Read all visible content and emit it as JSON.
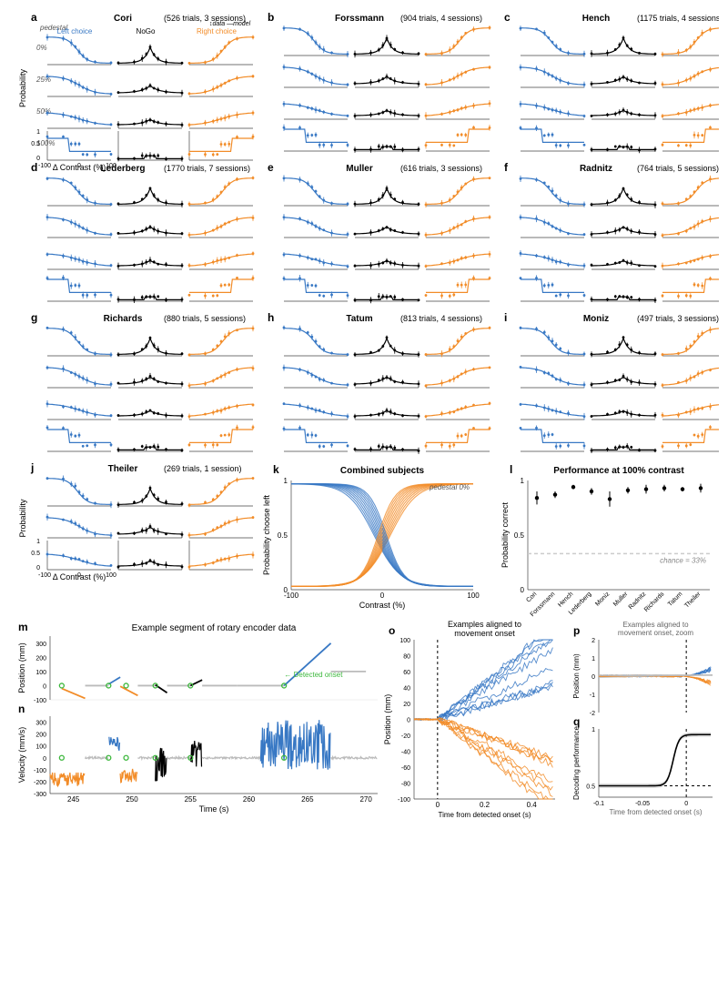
{
  "colors": {
    "left": "#3878c4",
    "nogo": "#000000",
    "right": "#f28c28",
    "axis": "#444444",
    "chance": "#cccccc",
    "grey": "#bbbbbb",
    "onset": "#3db83d"
  },
  "grid3x3": {
    "xvals": [
      -100,
      -50,
      -25,
      -12,
      0,
      12,
      25,
      50,
      100
    ],
    "pedestals": [
      "0%",
      "25%",
      "50%",
      "100%"
    ],
    "xlabel": "Δ Contrast (%)",
    "ylabel": "Probability",
    "legend_left": "Left choice",
    "legend_nogo": "NoGo",
    "legend_right": "Right choice",
    "legend_pedestal": "pedestal",
    "legend_data": "data",
    "legend_model": "model"
  },
  "subjects": [
    {
      "letter": "a",
      "name": "Cori",
      "meta": "(526 trials, 3 sessions)",
      "show_legend": true
    },
    {
      "letter": "b",
      "name": "Forssmann",
      "meta": "(904 trials, 4 sessions)"
    },
    {
      "letter": "c",
      "name": "Hench",
      "meta": "(1175 trials, 4 sessions)"
    },
    {
      "letter": "d",
      "name": "Lederberg",
      "meta": "(1770 trials, 7 sessions)"
    },
    {
      "letter": "e",
      "name": "Muller",
      "meta": "(616 trials, 3 sessions)"
    },
    {
      "letter": "f",
      "name": "Radnitz",
      "meta": "(764 trials, 5 sessions)"
    },
    {
      "letter": "g",
      "name": "Richards",
      "meta": "(880 trials, 5 sessions)"
    },
    {
      "letter": "h",
      "name": "Tatum",
      "meta": "(813 trials, 4 sessions)"
    },
    {
      "letter": "i",
      "name": "Moniz",
      "meta": "(497 trials, 3 sessions)"
    }
  ],
  "theiler": {
    "letter": "j",
    "name": "Theiler",
    "meta": "(269 trials, 1 session)",
    "rows": 3
  },
  "panel_k": {
    "letter": "k",
    "title": "Combined subjects",
    "legend": "pedestal 0%",
    "xlabel": "Contrast (%)",
    "ylabel": "Probability choose left",
    "xlim": [
      -100,
      100
    ],
    "ylim": [
      0,
      1
    ]
  },
  "panel_l": {
    "letter": "l",
    "title": "Performance at 100% contrast",
    "ylabel": "Probability correct",
    "chance": 0.33,
    "chance_label": "chance = 33%",
    "ylim": [
      0,
      1
    ],
    "categories": [
      "Cori",
      "Forssmann",
      "Hench",
      "Lederberg",
      "Moniz",
      "Muller",
      "Radnitz",
      "Richards",
      "Tatum",
      "Theiler"
    ],
    "values": [
      0.84,
      0.87,
      0.94,
      0.9,
      0.83,
      0.91,
      0.92,
      0.93,
      0.92,
      0.93
    ],
    "errs": [
      0.06,
      0.03,
      0.02,
      0.03,
      0.07,
      0.03,
      0.04,
      0.03,
      0.02,
      0.04
    ]
  },
  "panel_m": {
    "letter": "m",
    "title": "Example segment of rotary encoder data",
    "ylabel": "Position (mm)",
    "ylim": [
      -100,
      350
    ],
    "yticks": [
      -100,
      0,
      100,
      200,
      300
    ],
    "xlim": [
      243,
      271
    ],
    "onset_label": "Detected onset"
  },
  "panel_n": {
    "letter": "n",
    "ylabel": "Velocity (mm/s)",
    "ylim": [
      -300,
      350
    ],
    "yticks": [
      -300,
      -200,
      -100,
      0,
      100,
      200,
      300
    ],
    "xlim": [
      243,
      271
    ],
    "xlabel": "Time (s)",
    "xticks": [
      245,
      250,
      255,
      260,
      265,
      270
    ]
  },
  "panel_o": {
    "letter": "o",
    "title": "Examples aligned to movement onset",
    "ylabel": "Position (mm)",
    "ylim": [
      -100,
      100
    ],
    "yticks": [
      -100,
      -80,
      -60,
      -40,
      -20,
      0,
      20,
      40,
      60,
      80,
      100
    ],
    "xlim": [
      -0.1,
      0.5
    ],
    "xticks": [
      0,
      0.2,
      0.4
    ],
    "xlabel": "Time from detected onset (s)"
  },
  "panel_p": {
    "letter": "p",
    "title": "Examples aligned to movement onset, zoom",
    "ylabel": "Position (mm)",
    "ylim": [
      -2,
      2
    ],
    "yticks": [
      -2,
      -1,
      0,
      1,
      2
    ],
    "xlim": [
      -0.1,
      0.03
    ]
  },
  "panel_q": {
    "letter": "q",
    "ylabel": "Decoding performance",
    "xlabel": "Time from detected onset (s)",
    "ylim": [
      0.4,
      1
    ],
    "yticks": [
      0.5,
      1
    ],
    "xlim": [
      -0.1,
      0.03
    ],
    "xticks": [
      -0.1,
      -0.05,
      0
    ]
  }
}
